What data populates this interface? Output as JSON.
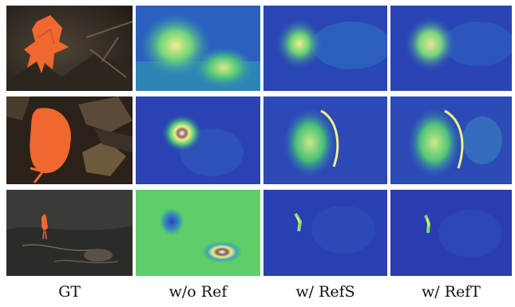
{
  "figure": {
    "columns": [
      {
        "label": "GT"
      },
      {
        "label": "w/o Ref"
      },
      {
        "label": "w/ RefS"
      },
      {
        "label": "w/ RefT"
      }
    ],
    "rows": [
      "row-1",
      "row-2",
      "row-3"
    ]
  },
  "colors": {
    "mask_orange": "#f0672f",
    "heat_low": "#2a3fb4",
    "heat_mid": "#3fbf6a",
    "heat_high": "#f1ef8a",
    "heat_peak": "#ffffff"
  }
}
